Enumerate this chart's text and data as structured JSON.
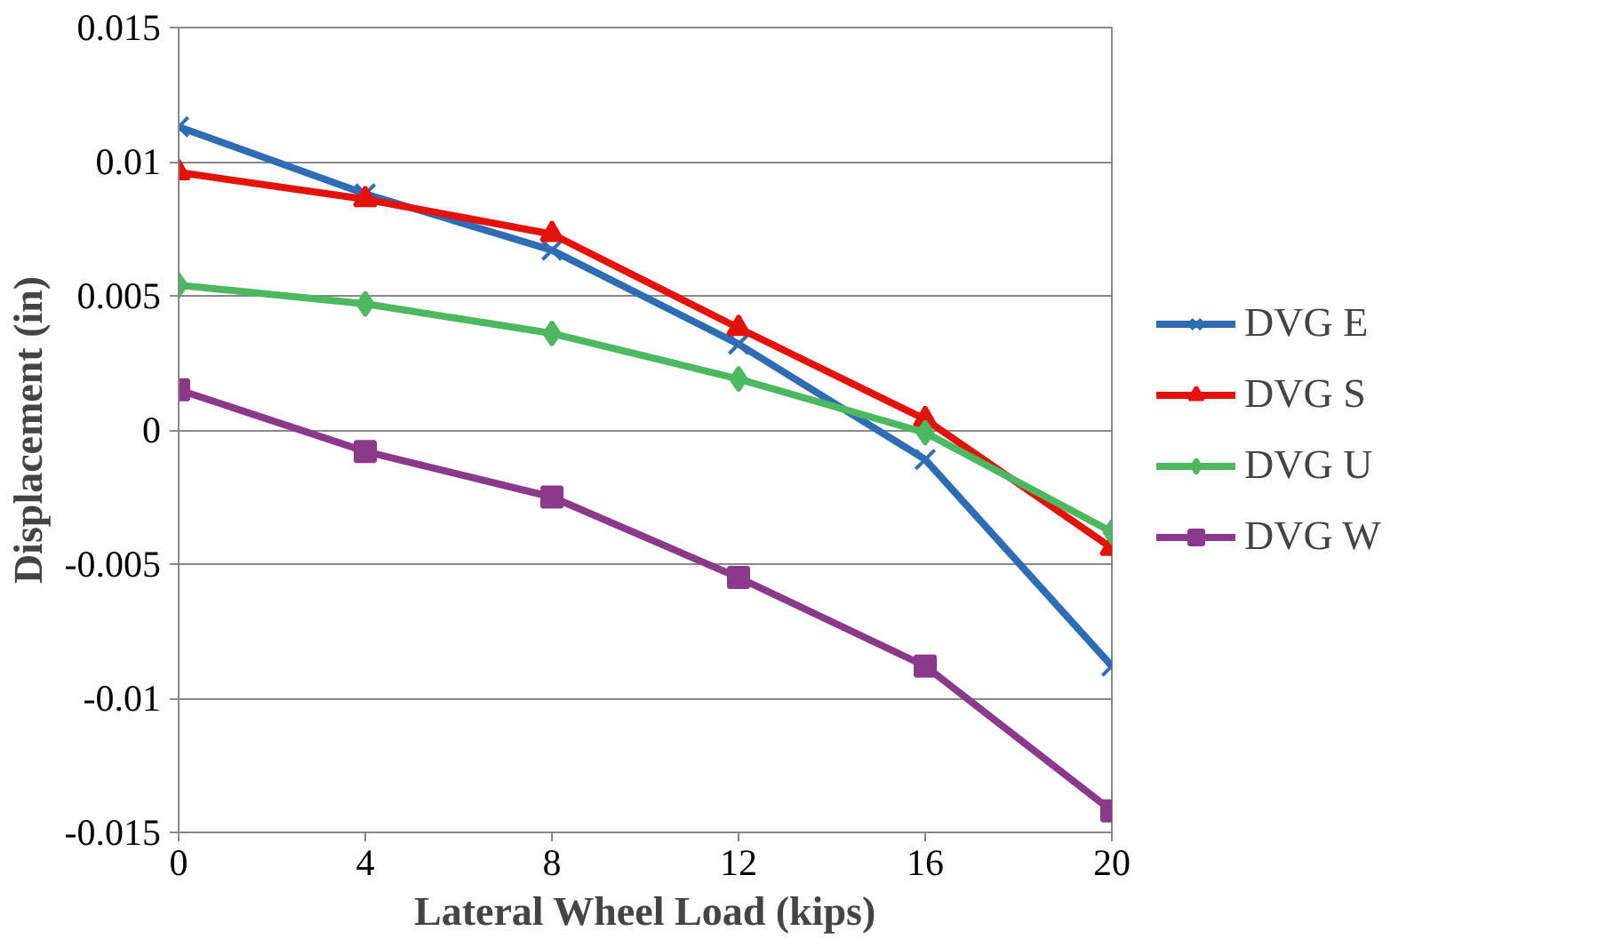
{
  "chart_data": {
    "type": "line",
    "xlabel": "Lateral Wheel Load (kips)",
    "ylabel": "Displacement (in)",
    "x": [
      0,
      4,
      8,
      12,
      16,
      20
    ],
    "series": [
      {
        "name": "DVG E",
        "color": "#2e6db4",
        "marker": "cross",
        "values": [
          0.0113,
          0.0088,
          0.0067,
          0.0032,
          -0.0011,
          -0.0088
        ]
      },
      {
        "name": "DVG S",
        "color": "#e3120b",
        "marker": "triangle",
        "values": [
          0.0096,
          0.0086,
          0.0073,
          0.0038,
          0.0004,
          -0.0044
        ]
      },
      {
        "name": "DVG U",
        "color": "#4cb860",
        "marker": "diamond",
        "values": [
          0.0054,
          0.0047,
          0.0036,
          0.0019,
          -0.0001,
          -0.0038
        ]
      },
      {
        "name": "DVG W",
        "color": "#8b3a8b",
        "marker": "square",
        "values": [
          0.0015,
          -0.0008,
          -0.0025,
          -0.0055,
          -0.0088,
          -0.0142
        ]
      }
    ],
    "xlim": [
      0,
      20
    ],
    "xticks": [
      0,
      4,
      8,
      12,
      16,
      20
    ],
    "ylim": [
      -0.015,
      0.015
    ],
    "yticks": [
      -0.015,
      -0.01,
      -0.005,
      0,
      0.005,
      0.01,
      0.015
    ],
    "grid": "y",
    "legend": "right",
    "line_style": "solid"
  }
}
